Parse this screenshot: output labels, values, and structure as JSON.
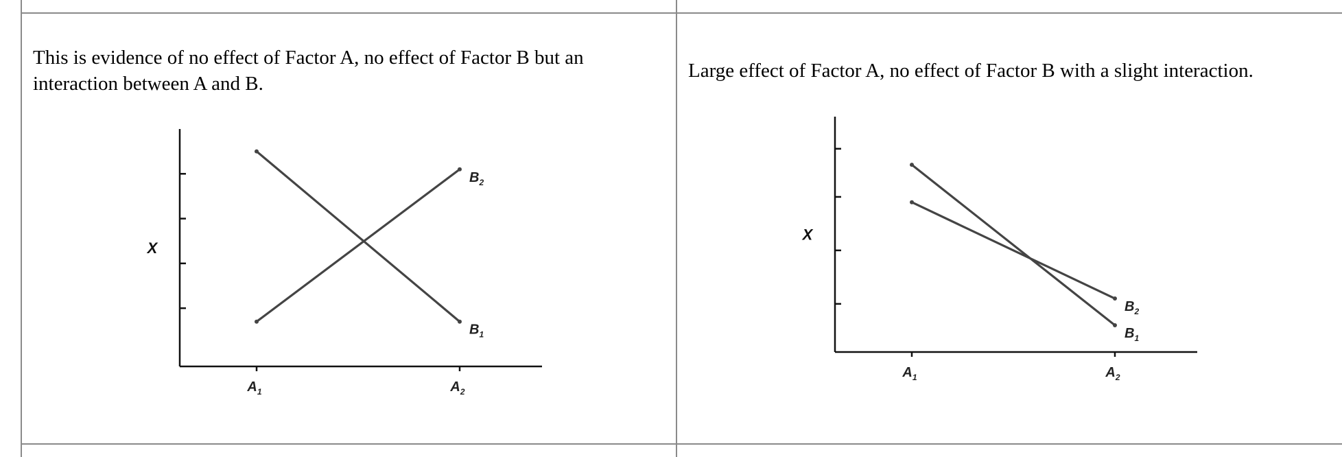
{
  "panels": [
    {
      "caption": "This is evidence of no effect of Factor A, no effect of Factor B but an interaction between A and B."
    },
    {
      "caption": "Large effect of Factor A, no effect of Factor B with a slight interaction."
    }
  ],
  "chart_data": [
    {
      "type": "line",
      "title": "",
      "xlabel": "",
      "ylabel": "X",
      "categories": [
        {
          "main": "A",
          "sub": "1"
        },
        {
          "main": "A",
          "sub": "2"
        }
      ],
      "series": [
        {
          "name": "B",
          "sub": "1",
          "values": [
            4.1,
            0.3
          ]
        },
        {
          "name": "B",
          "sub": "2",
          "values": [
            0.3,
            3.7
          ]
        }
      ],
      "ylim": [
        -0.7,
        4.6
      ],
      "yticks": [
        0.6,
        1.6,
        2.6,
        3.6
      ],
      "grid": false,
      "line_color": "#444444"
    },
    {
      "type": "line",
      "title": "",
      "xlabel": "",
      "ylabel": "X",
      "categories": [
        {
          "main": "A",
          "sub": "1"
        },
        {
          "main": "A",
          "sub": "2"
        }
      ],
      "series": [
        {
          "name": "B",
          "sub": "1",
          "values": [
            3.7,
            0.7
          ]
        },
        {
          "name": "B",
          "sub": "2",
          "values": [
            3.0,
            1.2
          ]
        }
      ],
      "ylim": [
        0.2,
        4.6
      ],
      "yticks": [
        1.1,
        2.1,
        3.1,
        4.0
      ],
      "grid": false,
      "line_color": "#444444"
    }
  ]
}
